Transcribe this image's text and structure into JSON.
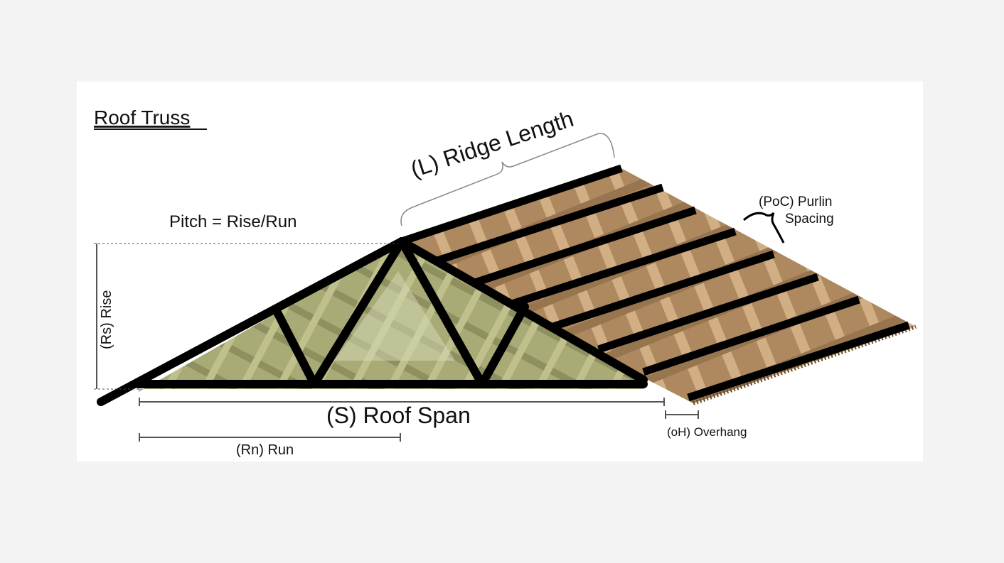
{
  "diagram": {
    "title": "Roof Truss",
    "ridge_length_label": "(L) Ridge Length",
    "pitch_label": "Pitch = Rise/Run",
    "purlin_spacing_label_line1": "(PoC) Purlin",
    "purlin_spacing_label_line2": "Spacing",
    "rise_label": "(Rs) Rise",
    "roof_span_label": "(S) Roof Span",
    "run_label": "(Rn) Run",
    "overhang_label": "(oH) Overhang"
  },
  "colors": {
    "page_background": "#f3f3f3",
    "panel_background": "#ffffff",
    "truss_web_fill": "#a9ab77",
    "truss_web_dark": "#8a8c55",
    "roof_deck": "#9a6e3c",
    "roof_deck_light": "#c79e6c",
    "member_black": "#000000",
    "dimension_line": "#555555"
  }
}
